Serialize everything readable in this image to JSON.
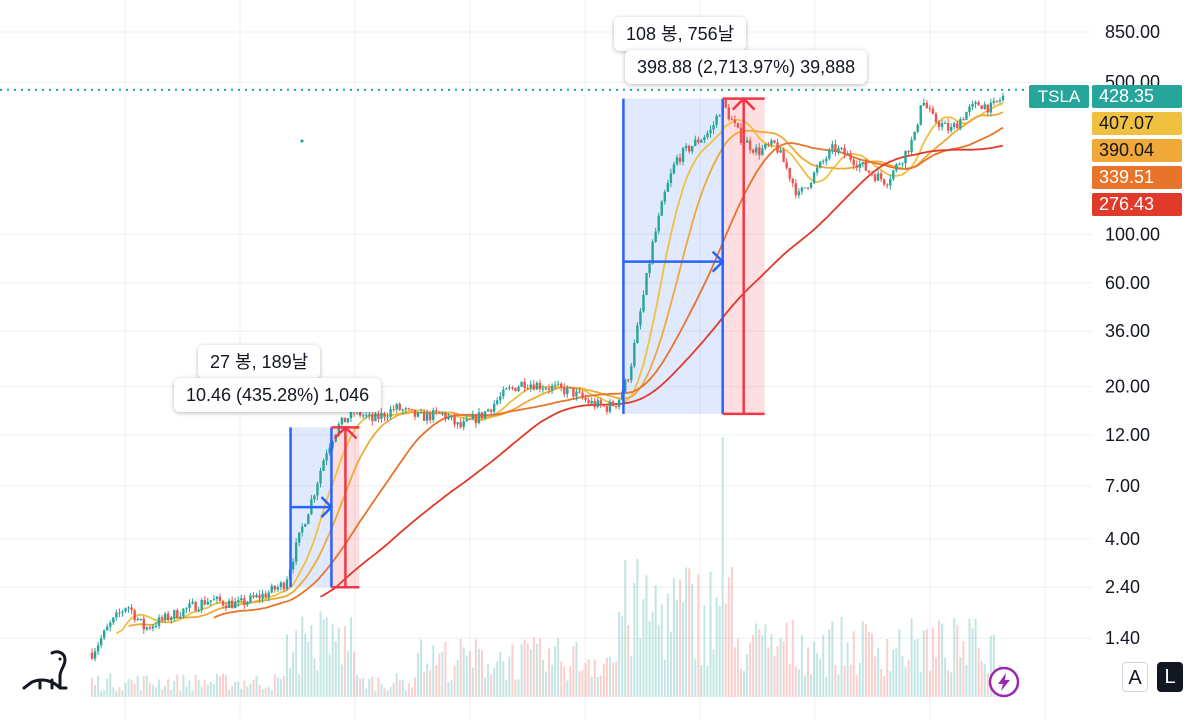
{
  "chart_data": {
    "type": "candlestick",
    "symbol": "TSLA",
    "y_scale": "log",
    "ylim": [
      0.95,
      1100
    ],
    "y_ticks": [
      "850.00",
      "500.00",
      "100.00",
      "60.00",
      "36.00",
      "20.00",
      "12.00",
      "7.00",
      "4.00",
      "2.40",
      "1.40"
    ],
    "y_tick_values": [
      850,
      500,
      100,
      60,
      36,
      20,
      12,
      7,
      4,
      2.4,
      1.4
    ],
    "grid": true,
    "last_price": 428.35,
    "last_price_label": "428.35",
    "price_path": [
      [
        0,
        1.2
      ],
      [
        3,
        1.6
      ],
      [
        6,
        2.0
      ],
      [
        9,
        1.55
      ],
      [
        12,
        1.7
      ],
      [
        16,
        1.9
      ],
      [
        20,
        2.1
      ],
      [
        25,
        2.0
      ],
      [
        30,
        2.25
      ],
      [
        33,
        2.5
      ],
      [
        36,
        4.5
      ],
      [
        38,
        6.5
      ],
      [
        40,
        10.0
      ],
      [
        42,
        13.0
      ],
      [
        45,
        15.5
      ],
      [
        48,
        14.0
      ],
      [
        52,
        16.0
      ],
      [
        56,
        14.5
      ],
      [
        60,
        15.0
      ],
      [
        63,
        13.0
      ],
      [
        67,
        15.0
      ],
      [
        71,
        19.0
      ],
      [
        74,
        21.0
      ],
      [
        78,
        20.0
      ],
      [
        82,
        19.0
      ],
      [
        85,
        17.0
      ],
      [
        88,
        16.0
      ],
      [
        90,
        17.0
      ],
      [
        92,
        23.0
      ],
      [
        94,
        45.0
      ],
      [
        96,
        90.0
      ],
      [
        98,
        150.0
      ],
      [
        100,
        220.0
      ],
      [
        103,
        260.0
      ],
      [
        106,
        300.0
      ],
      [
        108,
        400.0
      ],
      [
        111,
        280.0
      ],
      [
        114,
        240.0
      ],
      [
        117,
        260.0
      ],
      [
        119,
        200.0
      ],
      [
        121,
        150.0
      ],
      [
        124,
        195.0
      ],
      [
        127,
        250.0
      ],
      [
        130,
        225.0
      ],
      [
        133,
        195.0
      ],
      [
        136,
        175.0
      ],
      [
        139,
        230.0
      ],
      [
        141,
        285.0
      ],
      [
        142,
        420.0
      ],
      [
        144,
        340.0
      ],
      [
        147,
        300.0
      ],
      [
        150,
        370.0
      ],
      [
        152,
        400.0
      ],
      [
        154,
        380.0
      ],
      [
        156,
        428.35
      ]
    ],
    "series": [
      {
        "color": "#f0c040",
        "last_value": 407.07,
        "last_label": "407.07",
        "ma_period": 5
      },
      {
        "color": "#f0a838",
        "last_value": 390.04,
        "last_label": "390.04",
        "ma_period": 10
      },
      {
        "color": "#e8732a",
        "last_value": 339.51,
        "last_label": "339.51",
        "ma_period": 20
      },
      {
        "color": "#e03a2a",
        "last_value": 276.43,
        "last_label": "276.43",
        "ma_period": 40
      }
    ],
    "measurements": [
      {
        "bars_label": "27 봉, 189날",
        "change_label": "10.46 (435.28%) 1,046",
        "from_index": 34,
        "to_index": 41,
        "low": 2.4,
        "high": 13.0,
        "mid_price": 5.6
      },
      {
        "bars_label": "108 봉, 756날",
        "change_label": "398.88 (2,713.97%) 39,888",
        "from_index": 91,
        "to_index": 108,
        "low": 15.0,
        "high": 420.0,
        "mid_price": 75.0
      }
    ]
  },
  "colors": {
    "up": "#26a69a",
    "down": "#ef5350",
    "measure_blue": "#2962ff",
    "measure_red": "#f23645",
    "price_line": "#26a69a"
  },
  "controls": {
    "auto_label": "A",
    "log_label": "L"
  },
  "icons": {
    "logo": "dinosaur-icon",
    "alert": "lightning-icon"
  }
}
